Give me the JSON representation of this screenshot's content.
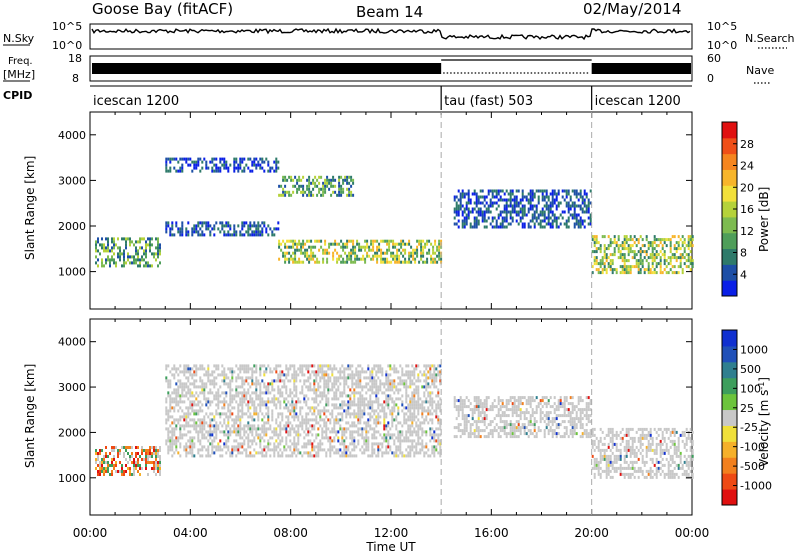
{
  "header": {
    "station": "Goose Bay (fitACF)",
    "beam": "Beam 14",
    "date": "02/May/2014"
  },
  "scan_panel": {
    "left_label": "N.Sky",
    "left_ticks": [
      "10^5",
      "10^0"
    ],
    "right_label": "N.Search",
    "right_ticks": [
      "10^5",
      "10^0"
    ]
  },
  "freq_panel": {
    "left_label_top": "Freq.",
    "left_label_unit": "[MHz]",
    "left_ticks": [
      "18",
      "8"
    ],
    "right_label": "Nave",
    "right_ticks": [
      "60",
      "0"
    ]
  },
  "cpid_panel": {
    "label": "CPID",
    "modes": [
      {
        "name": "icescan 1200",
        "start_hour": 0,
        "end_hour": 14
      },
      {
        "name": "tau (fast) 503",
        "start_hour": 14,
        "end_hour": 20
      },
      {
        "name": "icescan 1200",
        "start_hour": 20,
        "end_hour": 24
      }
    ]
  },
  "power_colorbar": {
    "label": "Power [dB]",
    "ticks": [
      "4",
      "8",
      "12",
      "16",
      "20",
      "24",
      "28"
    ],
    "colors": [
      "#0a1fe6",
      "#1d4fa6",
      "#2e7a6a",
      "#4f9e5a",
      "#7dbb50",
      "#b5d23a",
      "#f2e03a",
      "#f7b52b",
      "#f5851f",
      "#ef4f18",
      "#e01010"
    ]
  },
  "velocity_colorbar": {
    "label": "Velocity [m s",
    "label_sup": "-1",
    "label_end": "]",
    "ticks": [
      "1000",
      "500",
      "100",
      "25",
      "-25",
      "-100",
      "-500",
      "-1000"
    ],
    "colors": [
      "#1030d0",
      "#2050b8",
      "#2f7f8f",
      "#3d9e5c",
      "#6cc43c",
      "#c8c8c8",
      "#f0e03a",
      "#f5b02a",
      "#f2801e",
      "#ee4a14",
      "#e01010"
    ]
  },
  "chart_data": {
    "type": "heatmap",
    "xlabel": "Time UT",
    "x_ticks": [
      "00:00",
      "04:00",
      "08:00",
      "12:00",
      "16:00",
      "20:00",
      "00:00"
    ],
    "xlim_hours": [
      0,
      24
    ],
    "ylabel": "Slant Range [km]",
    "y_ticks": [
      "1000",
      "2000",
      "3000",
      "4000"
    ],
    "ylim_km": [
      180,
      4500
    ],
    "mode_boundaries_hours": [
      14,
      20
    ],
    "panels": [
      {
        "quantity": "Power [dB]",
        "scatter_bands": [
          {
            "start_hour": 0.2,
            "end_hour": 2.8,
            "range_km": [
              1100,
              1750
            ],
            "level": "mid"
          },
          {
            "start_hour": 3.0,
            "end_hour": 7.5,
            "range_km": [
              1800,
              2100
            ],
            "level": "low"
          },
          {
            "start_hour": 3.0,
            "end_hour": 7.5,
            "range_km": [
              3200,
              3500
            ],
            "level": "low"
          },
          {
            "start_hour": 7.5,
            "end_hour": 10.5,
            "range_km": [
              2700,
              3100
            ],
            "level": "mid"
          },
          {
            "start_hour": 7.5,
            "end_hour": 14.0,
            "range_km": [
              1200,
              1700
            ],
            "level": "high"
          },
          {
            "start_hour": 14.5,
            "end_hour": 20.0,
            "range_km": [
              2000,
              2800
            ],
            "level": "low"
          },
          {
            "start_hour": 20.0,
            "end_hour": 24.0,
            "range_km": [
              1000,
              1800
            ],
            "level": "high"
          }
        ]
      },
      {
        "quantity": "Velocity [m s-1]",
        "scatter_bands": [
          {
            "start_hour": 0.2,
            "end_hour": 2.8,
            "range_km": [
              1100,
              1700
            ],
            "level": "negative"
          },
          {
            "start_hour": 3.0,
            "end_hour": 14.0,
            "range_km": [
              1500,
              3500
            ],
            "level": "near-zero"
          },
          {
            "start_hour": 14.5,
            "end_hour": 20.0,
            "range_km": [
              1900,
              2800
            ],
            "level": "near-zero"
          },
          {
            "start_hour": 20.0,
            "end_hour": 24.0,
            "range_km": [
              1000,
              2100
            ],
            "level": "near-zero"
          }
        ]
      }
    ]
  }
}
